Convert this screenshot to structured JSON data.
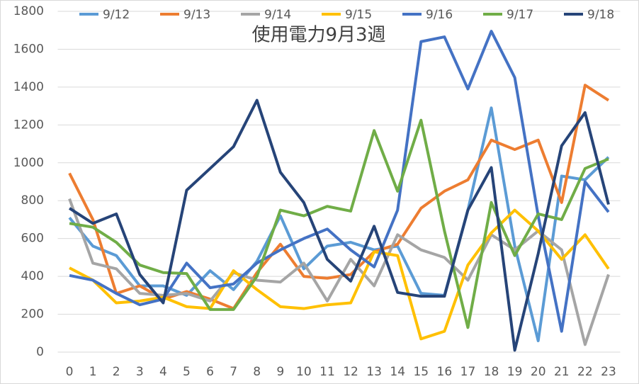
{
  "chart_data": {
    "type": "line",
    "title": "使用電力9月3週",
    "categories": [
      "0",
      "1",
      "2",
      "3",
      "4",
      "5",
      "6",
      "7",
      "8",
      "9",
      "10",
      "11",
      "12",
      "13",
      "14",
      "15",
      "16",
      "17",
      "18",
      "19",
      "20",
      "21",
      "22",
      "23"
    ],
    "ylim": [
      0,
      1800
    ],
    "yticks": [
      0,
      200,
      400,
      600,
      800,
      1000,
      1200,
      1400,
      1600,
      1800
    ],
    "grid": true,
    "legend": "top",
    "series": [
      {
        "name": "9/12",
        "color": "#5B9BD5",
        "values": [
          710,
          560,
          510,
          350,
          350,
          300,
          430,
          330,
          480,
          720,
          440,
          560,
          580,
          540,
          560,
          310,
          300,
          750,
          1290,
          560,
          60,
          930,
          910,
          1030
        ]
      },
      {
        "name": "9/13",
        "color": "#ED7D31",
        "values": [
          945,
          700,
          310,
          350,
          280,
          320,
          280,
          230,
          420,
          570,
          400,
          390,
          410,
          530,
          570,
          760,
          850,
          910,
          1120,
          1070,
          1120,
          790,
          1410,
          1330
        ]
      },
      {
        "name": "9/14",
        "color": "#A5A5A5",
        "values": [
          810,
          470,
          440,
          310,
          300,
          310,
          270,
          420,
          380,
          370,
          470,
          270,
          490,
          350,
          620,
          540,
          500,
          380,
          620,
          540,
          640,
          540,
          40,
          410
        ]
      },
      {
        "name": "9/15",
        "color": "#FFC000",
        "values": [
          445,
          380,
          260,
          270,
          290,
          240,
          230,
          430,
          330,
          240,
          230,
          250,
          260,
          530,
          510,
          70,
          110,
          460,
          630,
          750,
          640,
          490,
          620,
          440
        ]
      },
      {
        "name": "9/16",
        "color": "#4472C4",
        "values": [
          405,
          380,
          310,
          250,
          280,
          470,
          340,
          360,
          470,
          540,
          600,
          650,
          540,
          450,
          750,
          1640,
          1665,
          1390,
          1695,
          1450,
          720,
          110,
          900,
          740
        ]
      },
      {
        "name": "9/17",
        "color": "#70AD47",
        "values": [
          680,
          660,
          580,
          460,
          420,
          415,
          225,
          225,
          400,
          750,
          720,
          770,
          745,
          1170,
          850,
          1225,
          640,
          130,
          790,
          510,
          730,
          700,
          970,
          1020
        ]
      },
      {
        "name": "9/18",
        "color": "#264478",
        "values": [
          760,
          680,
          730,
          410,
          260,
          855,
          970,
          1085,
          1330,
          950,
          790,
          490,
          375,
          665,
          315,
          295,
          295,
          750,
          975,
          10,
          520,
          1090,
          1265,
          780
        ]
      }
    ]
  }
}
